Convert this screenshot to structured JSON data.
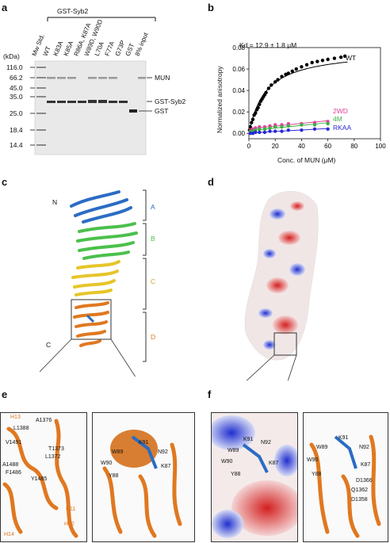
{
  "panels": {
    "a": "a",
    "b": "b",
    "c": "c",
    "d": "d",
    "e": "e",
    "f": "f"
  },
  "gel": {
    "group_label": "GST-Syb2",
    "unit_label": "(kDa)",
    "lanes": [
      "Mw Std.",
      "WT",
      "K83A",
      "K85A",
      "R86A, K87A",
      "W89D, W90D",
      "L70A",
      "F77A",
      "G73P",
      "GST",
      "8% input"
    ],
    "markers": [
      "116.0",
      "66.2",
      "45.0",
      "35.0",
      "25.0",
      "18.4",
      "14.4"
    ],
    "band_labels": [
      "MUN",
      "GST-Syb2",
      "GST"
    ]
  },
  "chart_data": {
    "type": "scatter",
    "xlabel": "Conc. of MUN (μM)",
    "ylabel": "Normalized anisotropy",
    "xlim": [
      0,
      100
    ],
    "ylim": [
      -0.005,
      0.08
    ],
    "xticks": [
      0,
      20,
      40,
      60,
      80,
      100
    ],
    "yticks": [
      0.0,
      0.02,
      0.04,
      0.06,
      0.08
    ],
    "annotation": "Kd = 12.9 ± 1.8 μM",
    "series": [
      {
        "name": "WT",
        "color": "#000000",
        "x": [
          0.5,
          1,
          2,
          3,
          4,
          5,
          6,
          7,
          8,
          9,
          10,
          11,
          12,
          13,
          15,
          17,
          20,
          22,
          25,
          28,
          30,
          33,
          36,
          40,
          44,
          48,
          52,
          56,
          60,
          65,
          70,
          73
        ],
        "y": [
          0.003,
          0.006,
          0.01,
          0.013,
          0.017,
          0.019,
          0.022,
          0.024,
          0.027,
          0.03,
          0.032,
          0.034,
          0.036,
          0.038,
          0.042,
          0.045,
          0.048,
          0.05,
          0.053,
          0.055,
          0.056,
          0.058,
          0.06,
          0.062,
          0.064,
          0.066,
          0.067,
          0.068,
          0.069,
          0.07,
          0.071,
          0.072
        ]
      },
      {
        "name": "2WD",
        "color": "#e0459a",
        "x": [
          1,
          3,
          5,
          8,
          12,
          16,
          20,
          25,
          30,
          40,
          50,
          60
        ],
        "y": [
          0.002,
          0.004,
          0.005,
          0.006,
          0.006,
          0.007,
          0.008,
          0.008,
          0.009,
          0.009,
          0.01,
          0.011
        ]
      },
      {
        "name": "4M",
        "color": "#3cb043",
        "x": [
          1,
          3,
          5,
          8,
          12,
          16,
          20,
          25,
          30,
          40,
          50,
          60
        ],
        "y": [
          0.001,
          0.002,
          0.003,
          0.004,
          0.004,
          0.005,
          0.006,
          0.006,
          0.007,
          0.008,
          0.008,
          0.009
        ]
      },
      {
        "name": "RKAA",
        "color": "#2a2ad6",
        "x": [
          1,
          3,
          5,
          8,
          12,
          16,
          20,
          25,
          30,
          40,
          50,
          60
        ],
        "y": [
          0.0,
          0.0,
          0.001,
          0.001,
          0.001,
          0.002,
          0.002,
          0.002,
          0.003,
          0.003,
          0.004,
          0.004
        ]
      }
    ]
  },
  "structure_c": {
    "n_label": "N",
    "c_label": "C",
    "domains": [
      {
        "label": "A",
        "color": "#2b6cc4"
      },
      {
        "label": "B",
        "color": "#4cc04c"
      },
      {
        "label": "C",
        "color": "#e6c52a"
      },
      {
        "label": "D",
        "color": "#e07820"
      }
    ]
  },
  "panel_e_left_labels": [
    "H13",
    "A1376",
    "L1388",
    "V1491",
    "T1373",
    "L1372",
    "A1488",
    "F1486",
    "Y1485",
    "H11",
    "H12",
    "H14"
  ],
  "panel_e_right_labels": [
    "K91",
    "W89",
    "N92",
    "W90",
    "K87",
    "Y88"
  ],
  "panel_f_left_labels": [
    "K91",
    "N92",
    "W89",
    "W90",
    "K87",
    "Y88"
  ],
  "panel_f_right_labels": [
    "K91",
    "W89",
    "N92",
    "W90",
    "K87",
    "Y88",
    "D1366",
    "Q1362",
    "D1358"
  ]
}
